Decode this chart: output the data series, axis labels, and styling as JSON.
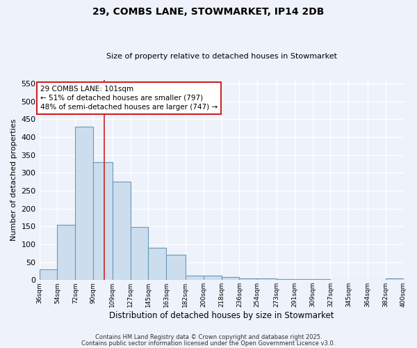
{
  "title1": "29, COMBS LANE, STOWMARKET, IP14 2DB",
  "title2": "Size of property relative to detached houses in Stowmarket",
  "xlabel": "Distribution of detached houses by size in Stowmarket",
  "ylabel": "Number of detached properties",
  "bin_labels": [
    "36sqm",
    "54sqm",
    "72sqm",
    "90sqm",
    "109sqm",
    "127sqm",
    "145sqm",
    "163sqm",
    "182sqm",
    "200sqm",
    "218sqm",
    "236sqm",
    "254sqm",
    "273sqm",
    "291sqm",
    "309sqm",
    "327sqm",
    "345sqm",
    "364sqm",
    "382sqm",
    "400sqm"
  ],
  "bin_edges": [
    36,
    54,
    72,
    90,
    109,
    127,
    145,
    163,
    182,
    200,
    218,
    236,
    254,
    273,
    291,
    309,
    327,
    345,
    364,
    382,
    400
  ],
  "bar_heights": [
    30,
    155,
    430,
    330,
    275,
    148,
    90,
    70,
    12,
    12,
    8,
    4,
    4,
    3,
    2,
    2,
    1,
    1,
    1,
    5
  ],
  "bar_color": "#ccdded",
  "bar_edge_color": "#6699bb",
  "annotation_text": "29 COMBS LANE: 101sqm\n← 51% of detached houses are smaller (797)\n48% of semi-detached houses are larger (747) →",
  "vline_x": 101,
  "vline_color": "#cc2222",
  "annotation_box_color": "#ffffff",
  "annotation_box_edge": "#cc2222",
  "ylim": [
    0,
    560
  ],
  "yticks": [
    0,
    50,
    100,
    150,
    200,
    250,
    300,
    350,
    400,
    450,
    500,
    550
  ],
  "bg_color": "#eef2fa",
  "grid_color": "#ffffff",
  "footer1": "Contains HM Land Registry data © Crown copyright and database right 2025.",
  "footer2": "Contains public sector information licensed under the Open Government Licence v3.0."
}
